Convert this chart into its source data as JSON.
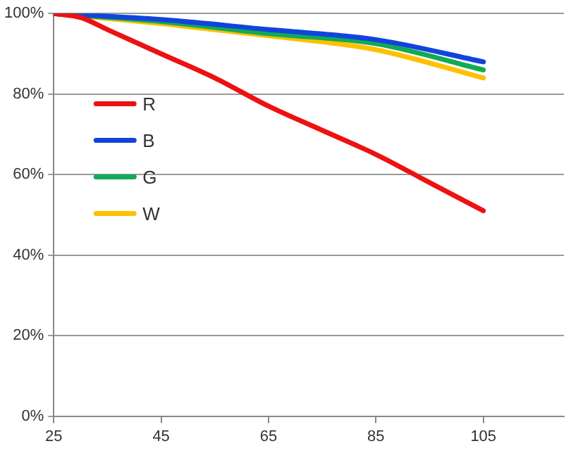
{
  "chart_data": {
    "type": "line",
    "x": [
      25,
      30,
      35,
      45,
      55,
      65,
      75,
      85,
      95,
      105
    ],
    "series": [
      {
        "name": "R",
        "color": "#ee1111",
        "values": [
          100,
          99,
          96,
          90,
          84,
          77,
          71,
          65,
          58,
          51
        ]
      },
      {
        "name": "B",
        "color": "#1144dd",
        "x": [
          25,
          45,
          65,
          85,
          105
        ],
        "values": [
          100,
          98.5,
          96,
          93.5,
          88
        ]
      },
      {
        "name": "G",
        "color": "#11aa55",
        "x": [
          25,
          45,
          65,
          85,
          105
        ],
        "values": [
          100,
          98,
          95,
          92.5,
          86
        ]
      },
      {
        "name": "W",
        "color": "#ffc000",
        "x": [
          25,
          45,
          65,
          85,
          105
        ],
        "values": [
          100,
          97.5,
          94.5,
          91,
          84
        ]
      }
    ],
    "xlim": [
      25,
      120
    ],
    "xticks": [
      25,
      45,
      65,
      85,
      105
    ],
    "ylim": [
      0,
      100
    ],
    "yticks": [
      {
        "value": 0,
        "label": "0%"
      },
      {
        "value": 20,
        "label": "20%"
      },
      {
        "value": 40,
        "label": "40%"
      },
      {
        "value": 60,
        "label": "60%"
      },
      {
        "value": 80,
        "label": "80%"
      },
      {
        "value": 100,
        "label": "100%"
      }
    ],
    "grid": "y",
    "legend": "left",
    "marker": "none",
    "line_style": "solid"
  }
}
